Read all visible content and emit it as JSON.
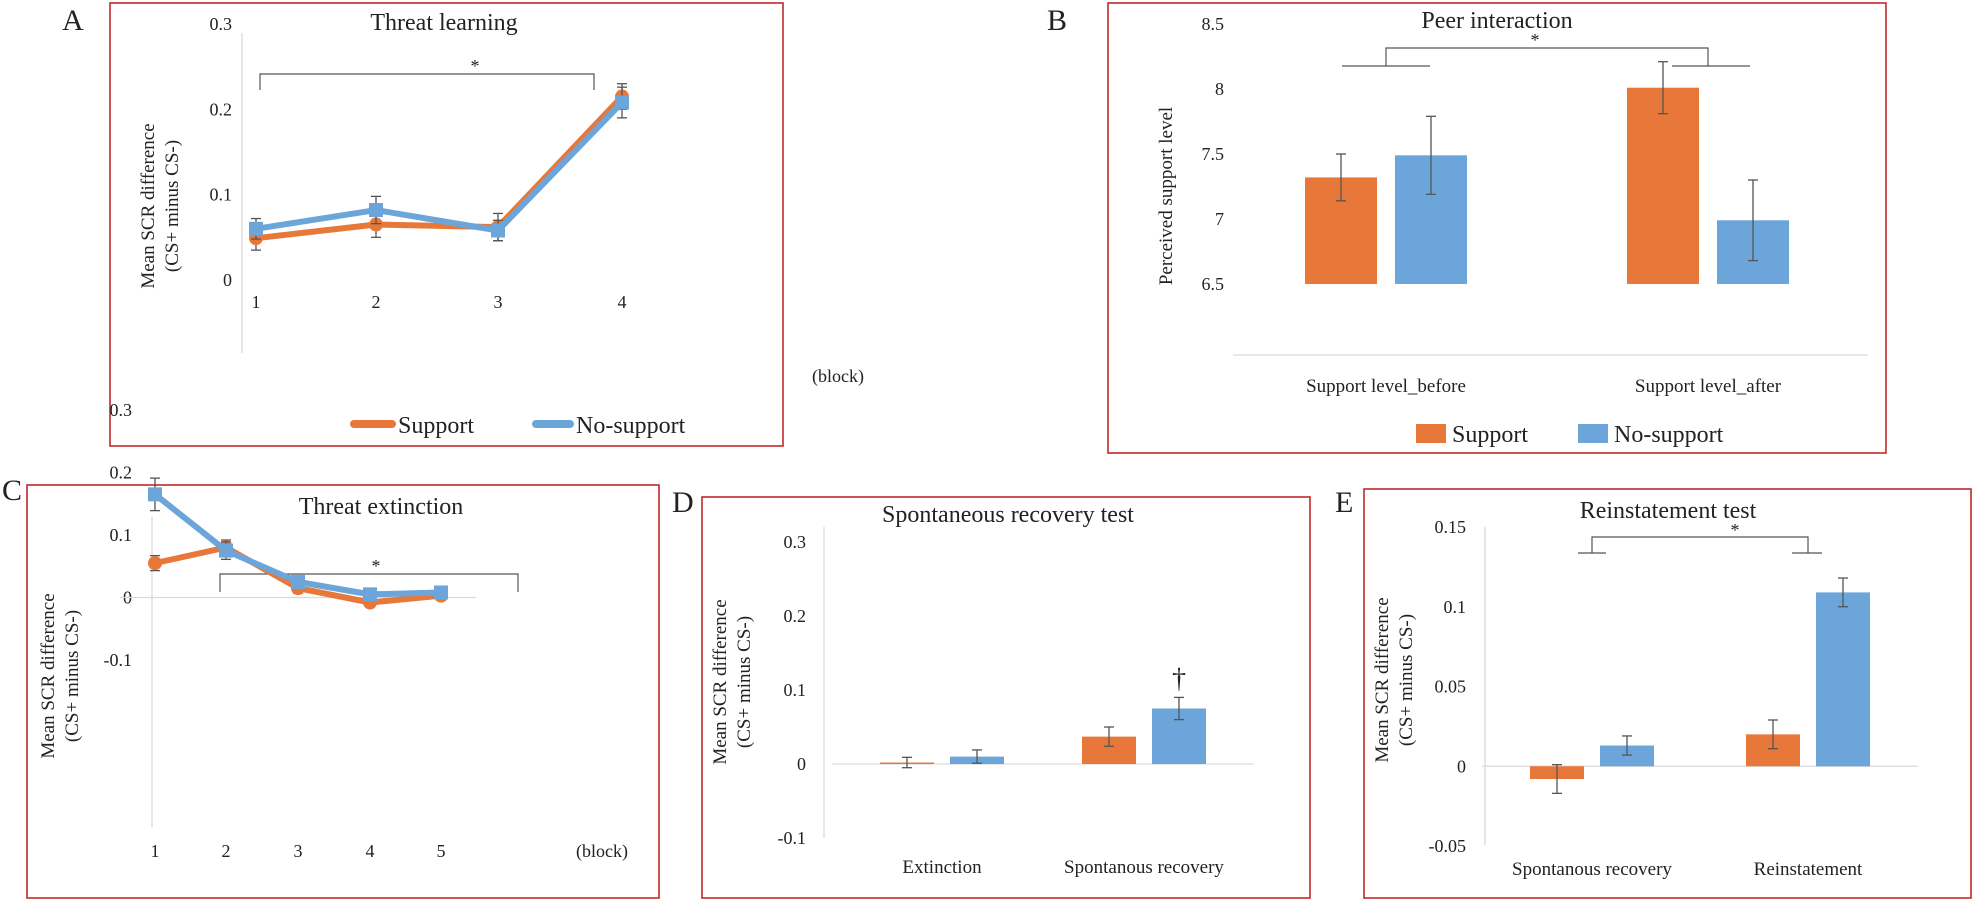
{
  "colors": {
    "support": "#E8783A",
    "nosupport": "#6BA5DA",
    "panel_border": "#C0292B"
  },
  "chart_data": [
    {
      "panel": "A",
      "type": "line",
      "title": "Threat learning",
      "ylabel_line1": "Mean SCR difference",
      "ylabel_line2": "(CS+ minus CS-)",
      "xunit": "(block)",
      "x": [
        1,
        2,
        3,
        4
      ],
      "ylim": [
        0,
        0.3
      ],
      "yticks": [
        0,
        0.1,
        0.2,
        0.3
      ],
      "ytick_labels": [
        "0",
        "0.1",
        "0.2",
        "0.3"
      ],
      "series": [
        {
          "name": "Support",
          "color": "#E8783A",
          "marker": "circle",
          "values": [
            0.049,
            0.065,
            0.062,
            0.215
          ],
          "errors": [
            0.014,
            0.015,
            0.016,
            0.015
          ]
        },
        {
          "name": "No-support",
          "color": "#6BA5DA",
          "marker": "square",
          "values": [
            0.06,
            0.082,
            0.058,
            0.208
          ],
          "errors": [
            0.012,
            0.016,
            0.012,
            0.018
          ]
        }
      ],
      "significance": {
        "from": 1,
        "to": 4,
        "label": "*"
      },
      "legend": [
        "Support",
        "No-support"
      ],
      "legend_position": "bottom"
    },
    {
      "panel": "B",
      "type": "bar",
      "title": "Peer interaction",
      "ylabel": "Perceived support level",
      "categories": [
        "Support level_before",
        "Support level_after"
      ],
      "ylim": [
        6.5,
        8.5
      ],
      "yticks": [
        6.5,
        7,
        7.5,
        8,
        8.5
      ],
      "ytick_labels": [
        "6.5",
        "7",
        "7.5",
        "8",
        "8.5"
      ],
      "series": [
        {
          "name": "Support",
          "color": "#E8783A",
          "values": [
            7.32,
            8.01
          ],
          "errors": [
            0.18,
            0.2
          ]
        },
        {
          "name": "No-support",
          "color": "#6BA5DA",
          "values": [
            7.49,
            6.99
          ],
          "errors": [
            0.3,
            0.31
          ]
        }
      ],
      "significance": {
        "label": "*"
      },
      "legend": [
        "Support",
        "No-support"
      ],
      "legend_position": "bottom"
    },
    {
      "panel": "C",
      "type": "line",
      "title": "Threat extinction",
      "ylabel_line1": "Mean SCR difference",
      "ylabel_line2": "(CS+ minus CS-)",
      "xunit": "(block)",
      "x": [
        1,
        2,
        3,
        4,
        5
      ],
      "ylim": [
        -0.1,
        0.3
      ],
      "yticks": [
        -0.1,
        0,
        0.1,
        0.2,
        0.3
      ],
      "ytick_labels": [
        "-0.1",
        "0",
        "0.1",
        "0.2",
        "0.3"
      ],
      "series": [
        {
          "name": "Support",
          "color": "#E8783A",
          "marker": "circle",
          "values": [
            0.055,
            0.08,
            0.015,
            -0.008,
            0.003
          ],
          "errors": [
            0.012,
            0.012,
            0.008,
            0.005,
            0.004
          ]
        },
        {
          "name": "No-support",
          "color": "#6BA5DA",
          "marker": "square",
          "values": [
            0.165,
            0.075,
            0.025,
            0.005,
            0.008
          ],
          "errors": [
            0.026,
            0.014,
            0.006,
            0.007,
            0.006
          ]
        }
      ],
      "significance": {
        "from": 1,
        "to": 4.6,
        "label": "*"
      }
    },
    {
      "panel": "D",
      "type": "bar",
      "title": "Spontaneous recovery test",
      "ylabel_line1": "Mean SCR difference",
      "ylabel_line2": "(CS+ minus CS-)",
      "categories": [
        "Extinction",
        "Spontanous recovery"
      ],
      "ylim": [
        -0.1,
        0.3
      ],
      "yticks": [
        -0.1,
        0,
        0.1,
        0.2,
        0.3
      ],
      "ytick_labels": [
        "-0.1",
        "0",
        "0.1",
        "0.2",
        "0.3"
      ],
      "series": [
        {
          "name": "Support",
          "color": "#E8783A",
          "values": [
            0.002,
            0.037
          ],
          "errors": [
            0.007,
            0.013
          ]
        },
        {
          "name": "No-support",
          "color": "#6BA5DA",
          "values": [
            0.01,
            0.075
          ],
          "errors": [
            0.009,
            0.015
          ]
        }
      ],
      "annotation": "†"
    },
    {
      "panel": "E",
      "type": "bar",
      "title": "Reinstatement test",
      "ylabel_line1": "Mean SCR difference",
      "ylabel_line2": "(CS+ minus CS-)",
      "categories": [
        "Spontanous recovery",
        "Reinstatement"
      ],
      "ylim": [
        -0.05,
        0.15
      ],
      "yticks": [
        -0.05,
        0,
        0.05,
        0.1,
        0.15
      ],
      "ytick_labels": [
        "-0.05",
        "0",
        "0.05",
        "0.1",
        "0.15"
      ],
      "series": [
        {
          "name": "Support",
          "color": "#E8783A",
          "values": [
            -0.008,
            0.02
          ],
          "errors": [
            0.009,
            0.009
          ]
        },
        {
          "name": "No-support",
          "color": "#6BA5DA",
          "values": [
            0.013,
            0.109
          ],
          "errors": [
            0.006,
            0.009
          ]
        }
      ],
      "significance": {
        "label": "*"
      }
    }
  ]
}
